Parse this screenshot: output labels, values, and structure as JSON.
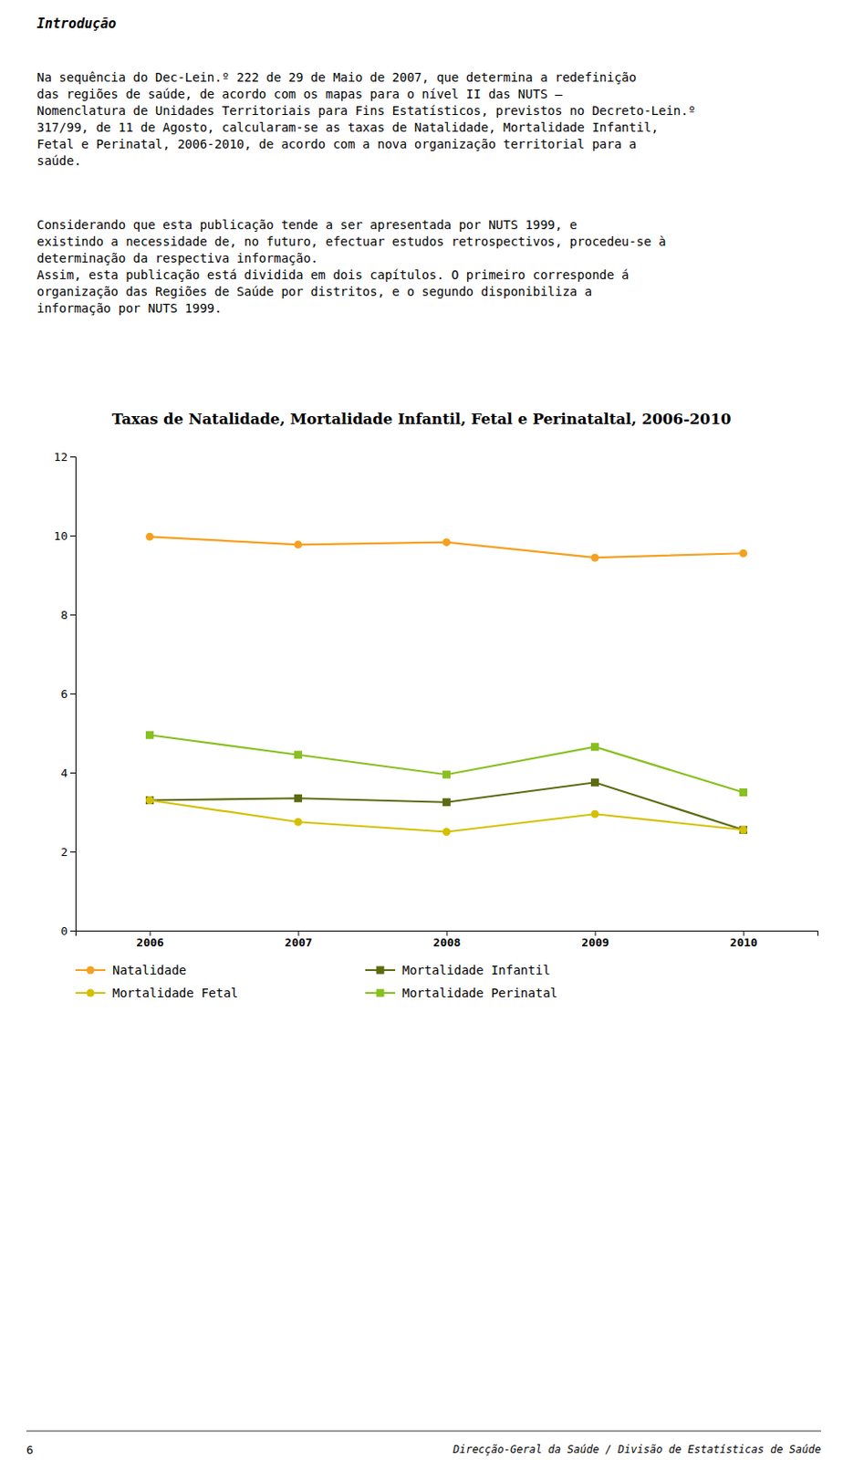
{
  "page": {
    "heading": "Introdução",
    "paragraphs": [
      [
        "Na sequência do Dec-Lein.º 222 de 29 de Maio de 2007, que determina a redefinição",
        "das regiões de saúde, de acordo com os mapas para o nível II das NUTS –",
        "Nomenclatura de Unidades Territoriais para Fins Estatísticos, previstos no Decreto-Lein.º",
        "317/99, de 11 de Agosto, calcularam-se as taxas de Natalidade, Mortalidade Infantil,",
        "Fetal e Perinatal, 2006-2010, de acordo com a nova organização territorial para a",
        "saúde."
      ],
      [
        "Considerando que esta publicação tende a ser apresentada por NUTS 1999, e",
        "existindo a necessidade de, no futuro, efectuar estudos retrospectivos, procedeu-se à",
        "determinação da respectiva informação.",
        "Assim, esta publicação está dividida em dois capítulos. O primeiro corresponde á",
        "organização das Regiões de Saúde por distritos, e o segundo disponibiliza a",
        "informação por NUTS 1999."
      ]
    ],
    "footer_left": "6",
    "footer_right": "Direcção-Geral da Saúde / Divisão de Estatísticas de Saúde"
  },
  "chart_data": {
    "type": "line",
    "title": "Taxas de Natalidade, Mortalidade Infantil, Fetal e Perinataltal, 2006-2010",
    "x": [
      2006,
      2007,
      2008,
      2009,
      2010
    ],
    "series": [
      {
        "name": "Natalidade",
        "color": "#F5A020",
        "marker": "circle",
        "values": [
          9.97,
          9.77,
          9.83,
          9.44,
          9.55
        ]
      },
      {
        "name": "Mortalidade Infantil",
        "color": "#5C6B10",
        "marker": "square",
        "values": [
          3.3,
          3.35,
          3.25,
          3.75,
          2.55
        ]
      },
      {
        "name": "Mortalidade Fetal",
        "color": "#D4C000",
        "marker": "circle",
        "values": [
          3.3,
          2.75,
          2.5,
          2.95,
          2.55
        ]
      },
      {
        "name": "Mortalidade Perinatal",
        "color": "#88C020",
        "marker": "square",
        "values": [
          4.95,
          4.45,
          3.95,
          4.65,
          3.5
        ]
      }
    ],
    "xlim": [
      2005.5,
      2010.5
    ],
    "xticks": [
      2006,
      2007,
      2008,
      2009,
      2010
    ],
    "ylim": [
      0,
      12
    ],
    "yticks": [
      0,
      2,
      4,
      6,
      8,
      10,
      12
    ],
    "grid": false
  }
}
